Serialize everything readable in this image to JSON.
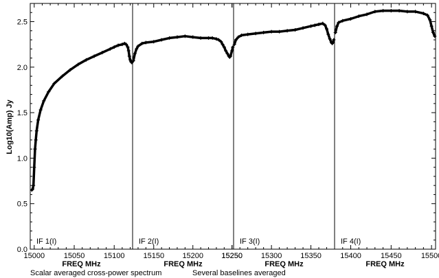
{
  "chart_data": {
    "type": "line",
    "ylabel": "Log10(Amp) Jy",
    "ylim": [
      0,
      2.7
    ],
    "y_ticks": [
      0.0,
      0.5,
      1.0,
      1.5,
      2.0,
      2.5
    ],
    "y_tick_labels": [
      "0.0",
      "0.5",
      "1.0",
      "1.5",
      "2.0",
      "2.5"
    ],
    "captions": [
      "Scalar averaged cross-power spectrum",
      "Several baselines averaged"
    ],
    "grid": false,
    "marker": "plus",
    "color": "#000000",
    "panels": [
      {
        "label": "IF 1(I)",
        "xlabel": "FREQ MHz",
        "xlim": [
          14995,
          15123
        ],
        "x_ticks": [
          15000,
          15050,
          15100
        ],
        "x_tick_labels": [
          "15000",
          "15050",
          "15100"
        ],
        "x": [
          14997,
          14998,
          14999,
          15000,
          15001,
          15002,
          15003,
          15005,
          15008,
          15012,
          15018,
          15025,
          15035,
          15045,
          15055,
          15065,
          15075,
          15085,
          15095,
          15100,
          15105,
          15110,
          15113,
          15115,
          15117,
          15118,
          15119,
          15120,
          15121,
          15122
        ],
        "y": [
          0.65,
          0.66,
          0.7,
          0.9,
          1.1,
          1.2,
          1.3,
          1.42,
          1.53,
          1.63,
          1.73,
          1.82,
          1.9,
          1.97,
          2.03,
          2.08,
          2.12,
          2.16,
          2.2,
          2.22,
          2.24,
          2.25,
          2.26,
          2.25,
          2.22,
          2.18,
          2.12,
          2.08,
          2.06,
          2.05
        ]
      },
      {
        "label": "IF 2(I)",
        "xlabel": "FREQ MHz",
        "xlim": [
          15123,
          15252
        ],
        "x_ticks": [
          15150,
          15200,
          15250
        ],
        "x_tick_labels": [
          "15150",
          "15200",
          "15250"
        ],
        "x": [
          15124,
          15126,
          15128,
          15130,
          15135,
          15140,
          15150,
          15160,
          15170,
          15180,
          15190,
          15200,
          15210,
          15220,
          15225,
          15230,
          15233,
          15236,
          15238,
          15240,
          15242,
          15244,
          15246,
          15247,
          15248,
          15250,
          15251
        ],
        "y": [
          2.07,
          2.15,
          2.2,
          2.23,
          2.26,
          2.27,
          2.28,
          2.3,
          2.32,
          2.33,
          2.34,
          2.33,
          2.32,
          2.32,
          2.32,
          2.31,
          2.3,
          2.28,
          2.25,
          2.22,
          2.18,
          2.15,
          2.12,
          2.11,
          2.12,
          2.18,
          2.22
        ]
      },
      {
        "label": "IF 3(I)",
        "xlabel": "FREQ MHz",
        "xlim": [
          15252,
          15380
        ],
        "x_ticks": [
          15250,
          15300,
          15350
        ],
        "x_tick_labels": [
          "15250",
          "15300",
          "15350"
        ],
        "x": [
          15253,
          15255,
          15258,
          15262,
          15270,
          15280,
          15290,
          15300,
          15310,
          15320,
          15330,
          15340,
          15350,
          15355,
          15360,
          15365,
          15368,
          15370,
          15372,
          15374,
          15376,
          15377,
          15378,
          15379
        ],
        "y": [
          2.25,
          2.3,
          2.33,
          2.35,
          2.36,
          2.37,
          2.38,
          2.39,
          2.39,
          2.4,
          2.41,
          2.43,
          2.45,
          2.46,
          2.47,
          2.48,
          2.46,
          2.42,
          2.36,
          2.31,
          2.27,
          2.26,
          2.27,
          2.3
        ]
      },
      {
        "label": "IF 4(I)",
        "xlabel": "FREQ MHz",
        "xlim": [
          15380,
          15505
        ],
        "x_ticks": [
          15400,
          15450,
          15500
        ],
        "x_tick_labels": [
          "15400",
          "15450",
          "15500"
        ],
        "x": [
          15381,
          15383,
          15385,
          15390,
          15400,
          15410,
          15420,
          15430,
          15440,
          15450,
          15460,
          15470,
          15480,
          15490,
          15495,
          15498,
          15500,
          15502,
          15504
        ],
        "y": [
          2.38,
          2.45,
          2.49,
          2.51,
          2.53,
          2.56,
          2.58,
          2.61,
          2.62,
          2.62,
          2.62,
          2.61,
          2.61,
          2.59,
          2.57,
          2.52,
          2.45,
          2.38,
          2.34
        ]
      }
    ]
  }
}
